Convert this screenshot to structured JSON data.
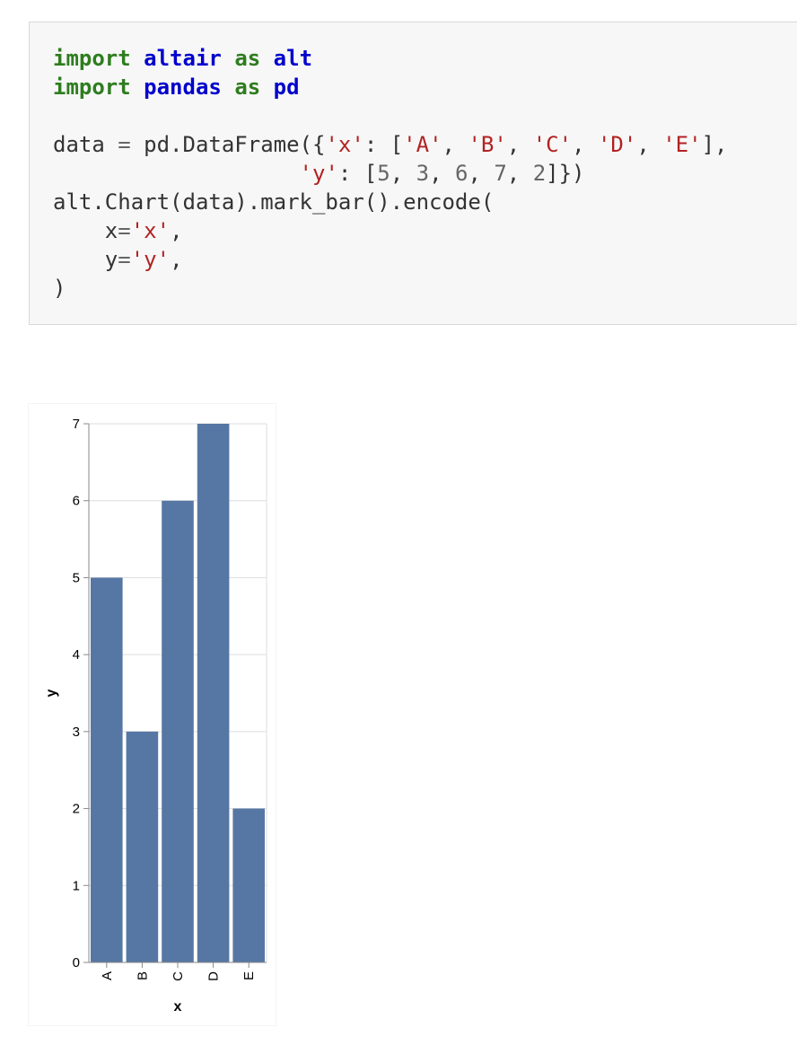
{
  "code_cell": {
    "lines": [
      [
        {
          "t": "import",
          "c": "kw"
        },
        {
          "t": " ",
          "c": ""
        },
        {
          "t": "altair",
          "c": "mod"
        },
        {
          "t": " ",
          "c": ""
        },
        {
          "t": "as",
          "c": "kw"
        },
        {
          "t": " ",
          "c": ""
        },
        {
          "t": "alt",
          "c": "mod"
        }
      ],
      [
        {
          "t": "import",
          "c": "kw"
        },
        {
          "t": " ",
          "c": ""
        },
        {
          "t": "pandas",
          "c": "mod"
        },
        {
          "t": " ",
          "c": ""
        },
        {
          "t": "as",
          "c": "kw"
        },
        {
          "t": " ",
          "c": ""
        },
        {
          "t": "pd",
          "c": "mod"
        }
      ],
      [],
      [
        {
          "t": "data ",
          "c": ""
        },
        {
          "t": "=",
          "c": "op"
        },
        {
          "t": " pd.DataFrame({",
          "c": ""
        },
        {
          "t": "'x'",
          "c": "str"
        },
        {
          "t": ": [",
          "c": ""
        },
        {
          "t": "'A'",
          "c": "str"
        },
        {
          "t": ", ",
          "c": ""
        },
        {
          "t": "'B'",
          "c": "str"
        },
        {
          "t": ", ",
          "c": ""
        },
        {
          "t": "'C'",
          "c": "str"
        },
        {
          "t": ", ",
          "c": ""
        },
        {
          "t": "'D'",
          "c": "str"
        },
        {
          "t": ", ",
          "c": ""
        },
        {
          "t": "'E'",
          "c": "str"
        },
        {
          "t": "],",
          "c": ""
        }
      ],
      [
        {
          "t": "                   ",
          "c": ""
        },
        {
          "t": "'y'",
          "c": "str"
        },
        {
          "t": ": [",
          "c": ""
        },
        {
          "t": "5",
          "c": "num"
        },
        {
          "t": ", ",
          "c": ""
        },
        {
          "t": "3",
          "c": "num"
        },
        {
          "t": ", ",
          "c": ""
        },
        {
          "t": "6",
          "c": "num"
        },
        {
          "t": ", ",
          "c": ""
        },
        {
          "t": "7",
          "c": "num"
        },
        {
          "t": ", ",
          "c": ""
        },
        {
          "t": "2",
          "c": "num"
        },
        {
          "t": "]})",
          "c": ""
        }
      ],
      [
        {
          "t": "alt.Chart(data).mark_bar().encode(",
          "c": ""
        }
      ],
      [
        {
          "t": "    x",
          "c": ""
        },
        {
          "t": "=",
          "c": "op"
        },
        {
          "t": "'x'",
          "c": "str"
        },
        {
          "t": ",",
          "c": ""
        }
      ],
      [
        {
          "t": "    y",
          "c": ""
        },
        {
          "t": "=",
          "c": "op"
        },
        {
          "t": "'y'",
          "c": "str"
        },
        {
          "t": ",",
          "c": ""
        }
      ],
      [
        {
          "t": ")",
          "c": ""
        }
      ]
    ]
  },
  "chart_data": {
    "type": "bar",
    "categories": [
      "A",
      "B",
      "C",
      "D",
      "E"
    ],
    "values": [
      5,
      3,
      6,
      7,
      2
    ],
    "xlabel": "x",
    "ylabel": "y",
    "ylim": [
      0,
      7
    ],
    "yticks": [
      "0",
      "1",
      "2",
      "3",
      "4",
      "5",
      "6",
      "7"
    ],
    "grid": true,
    "bar_color": "#5677a4",
    "grid_color": "#dddddd",
    "axis_color": "#888888"
  }
}
